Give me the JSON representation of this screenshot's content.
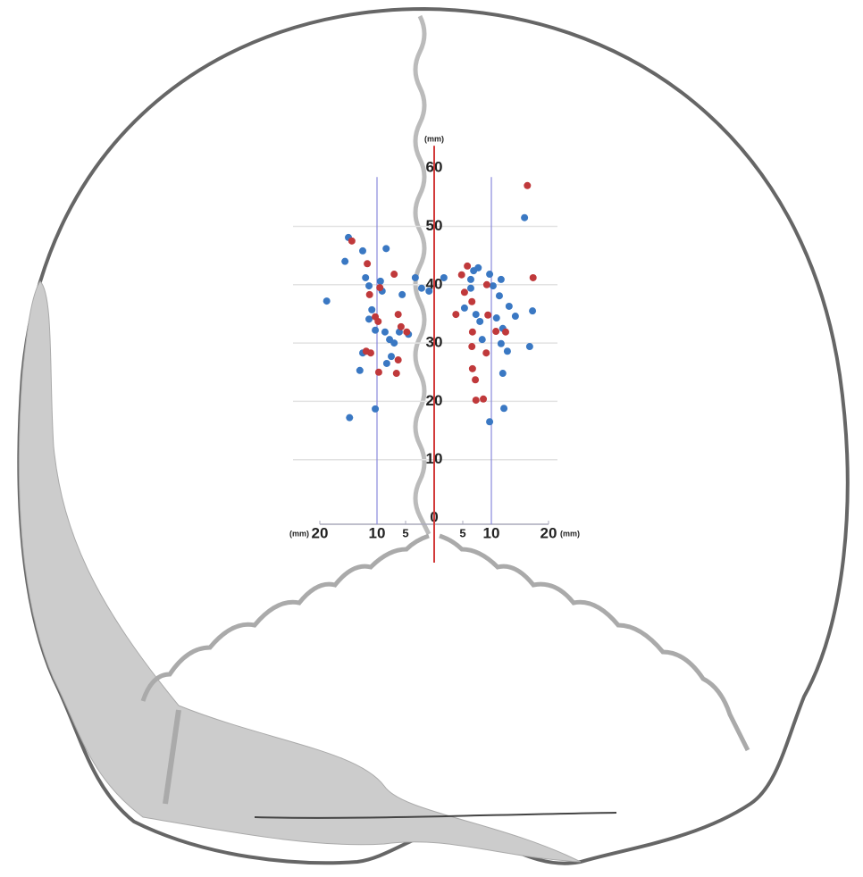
{
  "chart_data": {
    "type": "scatter",
    "xlim": [
      -20,
      20
    ],
    "ylim": [
      0,
      60
    ],
    "xticks": [
      {
        "value": -20,
        "label": "20"
      },
      {
        "value": -10,
        "label": "10"
      },
      {
        "value": -5,
        "label": "5"
      },
      5,
      10,
      20
    ],
    "yticks": [
      0,
      10,
      20,
      30,
      40,
      50,
      60
    ],
    "x_unit": "(mm)",
    "y_unit": "(mm)",
    "grid": true,
    "series": [
      {
        "color": "#3a78c3",
        "x": [
          -15,
          -15.6,
          -12.5,
          -8.4,
          -18.8,
          -12,
          -11.4,
          -9.4,
          -9.1,
          -10.9,
          -11.4,
          -10.3,
          -12.5,
          -13,
          -14.8,
          -10.3,
          -8.6,
          -7.8,
          -7,
          -6.1,
          -7.5,
          -8.3,
          -5.6,
          -3.3,
          -2.2,
          -0.9,
          -4.5,
          1.7,
          5.3,
          6.9,
          7.7,
          6.4,
          7.3,
          8.0,
          8.4,
          9.7,
          10.3,
          11.4,
          11.7,
          10.9,
          12,
          11.7,
          12.8,
          12,
          12.2,
          9.7,
          13.1,
          14.2,
          15.8,
          17.2,
          16.7,
          6.4
        ],
        "values": [
          48.1,
          44,
          45.8,
          46.2,
          37.2,
          41.2,
          39.8,
          40.6,
          38.9,
          35.7,
          34.1,
          32.2,
          28.3,
          25.3,
          17.2,
          18.7,
          31.9,
          30.6,
          30,
          31.9,
          27.7,
          26.5,
          38.3,
          41.2,
          39.4,
          38.9,
          31.5,
          41.2,
          36,
          42.4,
          42.9,
          39.4,
          34.9,
          33.7,
          30.6,
          41.8,
          39.8,
          38.1,
          40.9,
          34.3,
          32.5,
          29.9,
          28.6,
          24.8,
          18.8,
          16.5,
          36.3,
          34.6,
          51.5,
          35.5,
          29.4,
          40.9
        ]
      },
      {
        "color": "#c0393b",
        "x": [
          -14.4,
          -11.7,
          -7,
          -9.5,
          -11.3,
          -10.3,
          -9.8,
          -11.9,
          -11.1,
          -9.7,
          -6.3,
          -5.8,
          -4.8,
          -6.3,
          -6.6,
          4.8,
          5.8,
          5.3,
          6.6,
          6.7,
          6.6,
          6.7,
          7.2,
          7.3,
          8.6,
          9.2,
          9.4,
          9.1,
          10.8,
          12.5,
          16.3,
          17.3,
          3.8
        ],
        "values": [
          47.5,
          43.6,
          41.8,
          39.5,
          38.3,
          34.5,
          33.7,
          28.6,
          28.3,
          25,
          34.9,
          32.8,
          31.9,
          27.1,
          24.8,
          41.7,
          43.2,
          38.7,
          37.1,
          31.9,
          29.4,
          25.6,
          23.7,
          20.2,
          20.4,
          40,
          34.8,
          28.3,
          32,
          31.9,
          57,
          41.2,
          34.9
        ]
      }
    ]
  }
}
